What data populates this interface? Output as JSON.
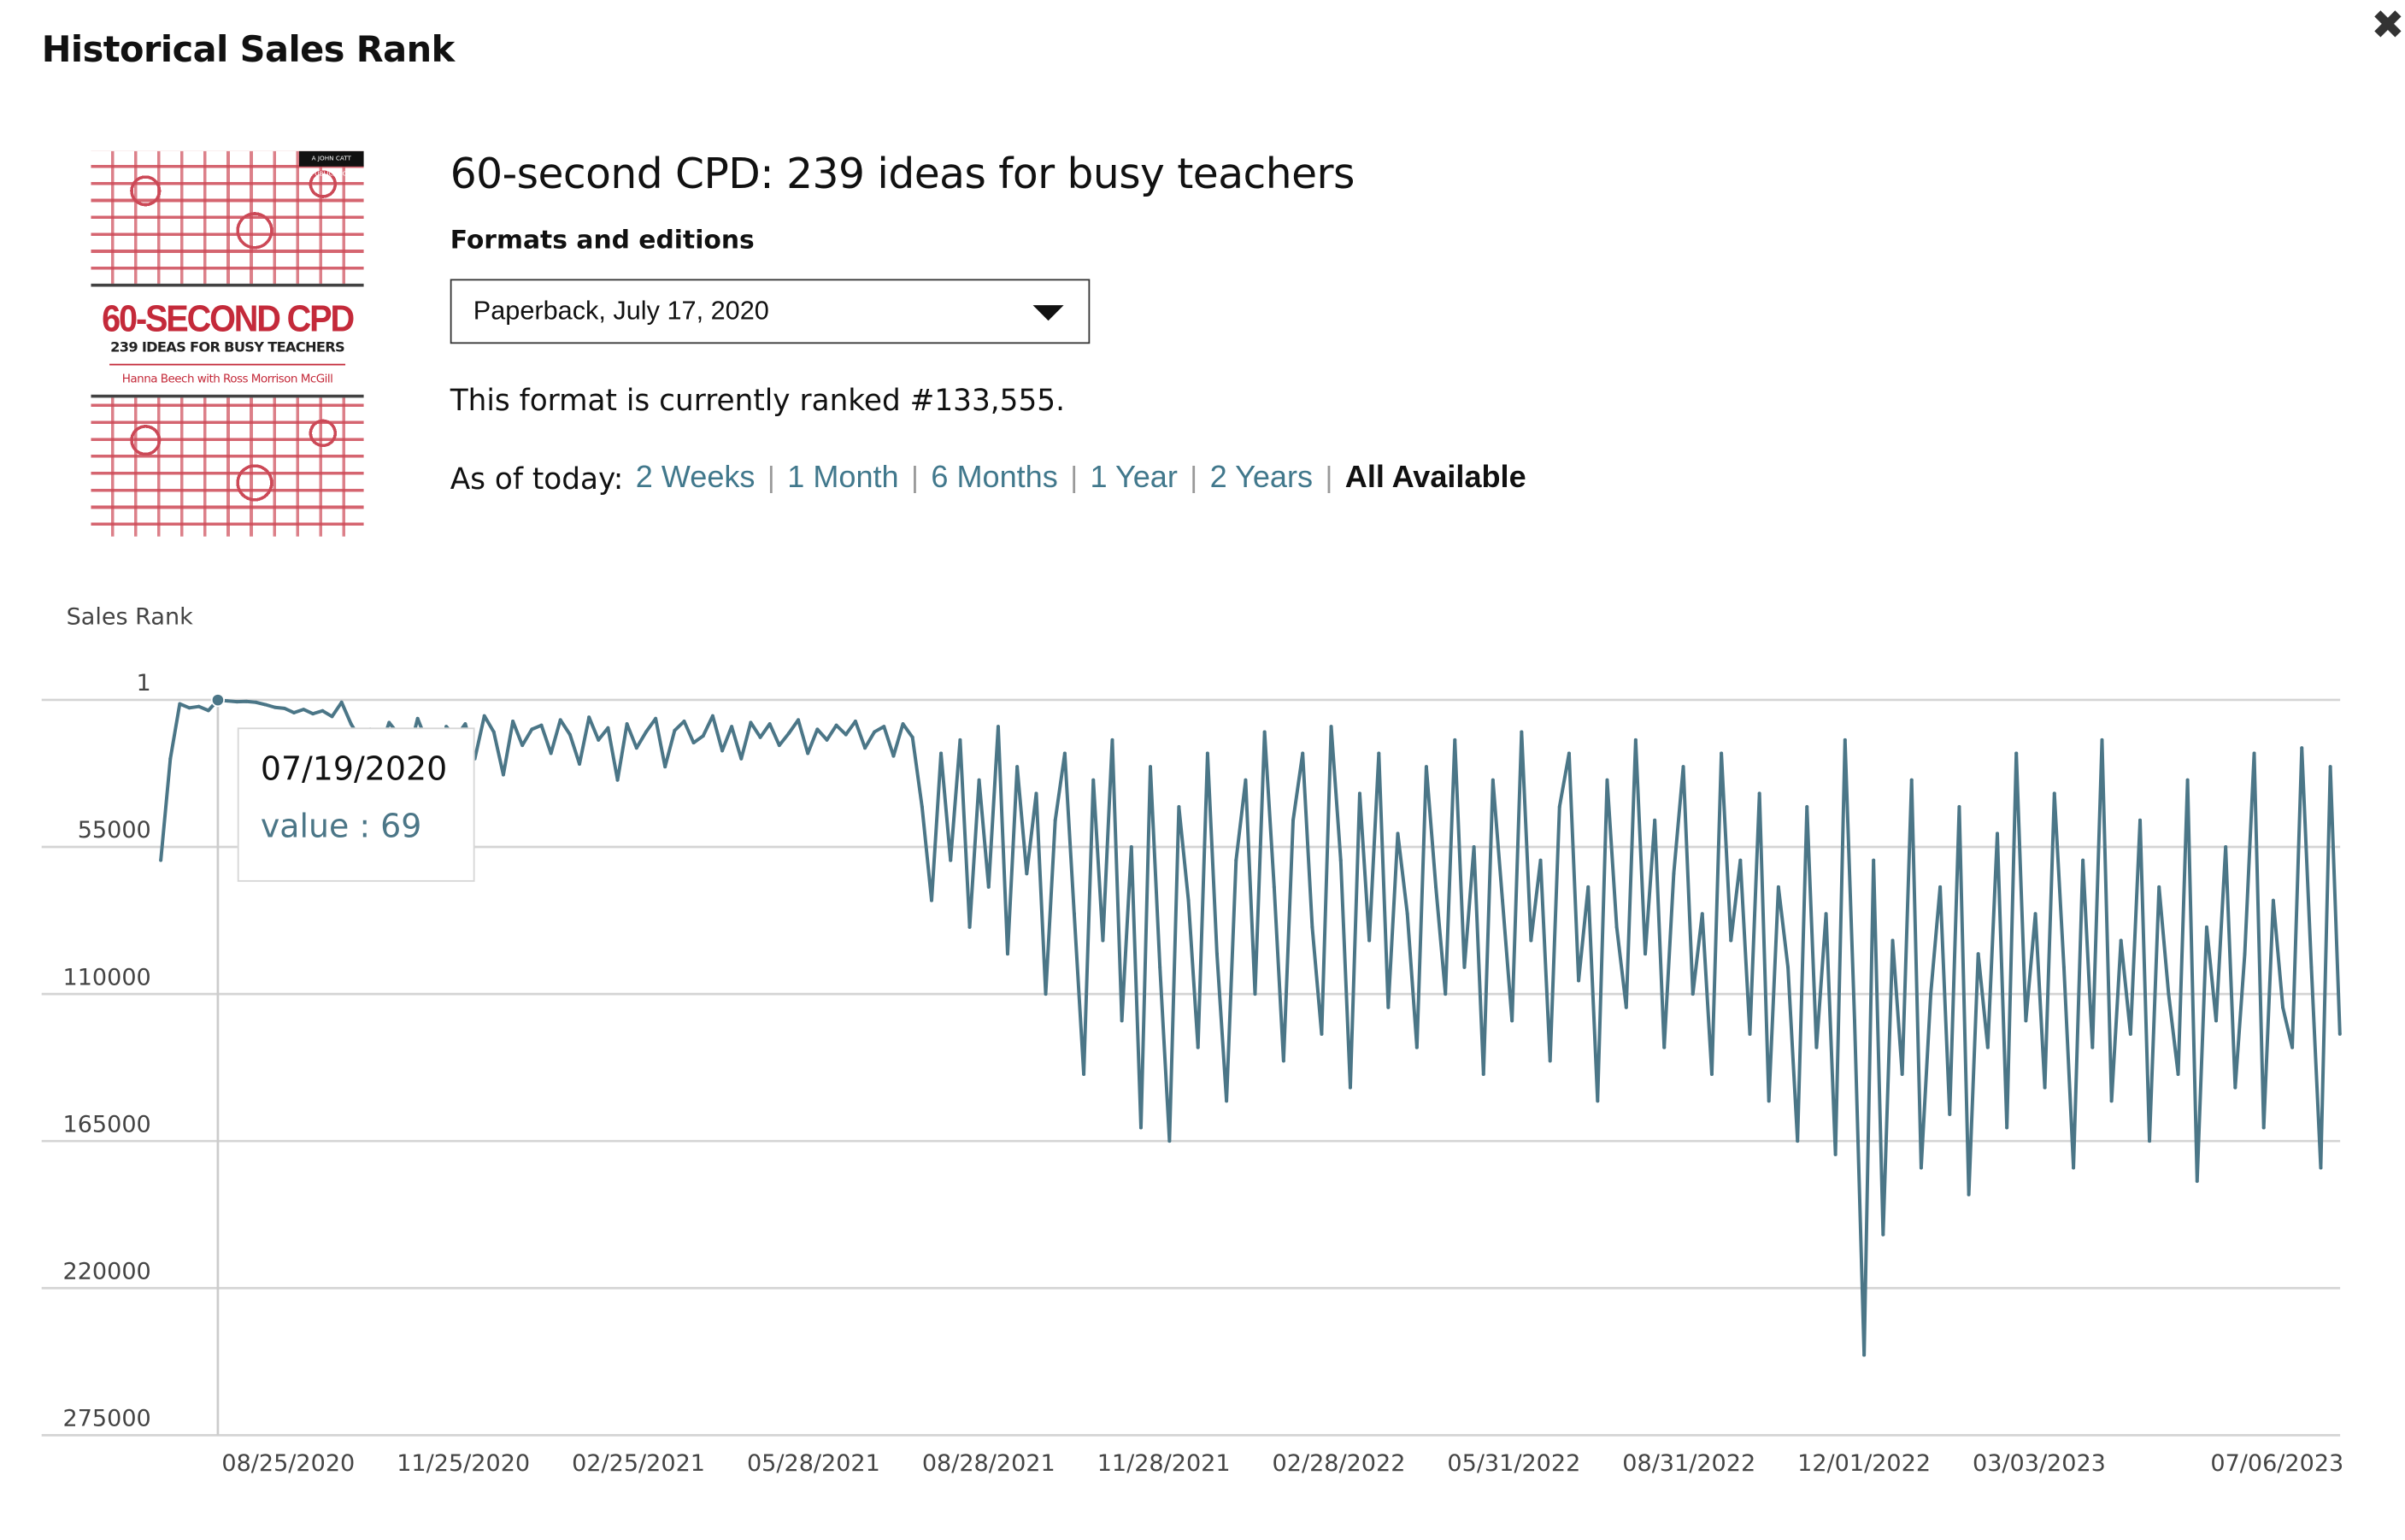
{
  "header": {
    "title": "Historical Sales Rank",
    "close_icon": "close-icon"
  },
  "product": {
    "title": "60-second CPD: 239 ideas for busy teachers",
    "cover": {
      "title": "60-SECOND CPD",
      "subtitle": "239 IDEAS FOR BUSY TEACHERS",
      "authors": "Hanna Beech with Ross Morrison McGill",
      "badge": "A JOHN CATT PUBLICATION"
    },
    "formats_label": "Formats and editions",
    "format_selected": "Paperback, July 17, 2020",
    "rank_text": "This format is currently ranked #133,555."
  },
  "range": {
    "prefix": "As of today:",
    "options": [
      "2 Weeks",
      "1 Month",
      "6 Months",
      "1 Year",
      "2 Years"
    ],
    "active": "All Available"
  },
  "colors": {
    "line": "#4b7687",
    "link": "#41788c",
    "grid": "#d4d4d4"
  },
  "tooltip": {
    "date": "07/19/2020",
    "value_text": "value : 69"
  },
  "chart_data": {
    "type": "line",
    "title": "",
    "ylabel": "Sales Rank",
    "xlabel": "",
    "y_inverted": true,
    "ylim": [
      1,
      275000
    ],
    "y_ticks": [
      "1",
      "55000",
      "110000",
      "165000",
      "220000",
      "275000"
    ],
    "y_tick_values": [
      1,
      55000,
      110000,
      165000,
      220000,
      275000
    ],
    "x_ticks": [
      "08/25/2020",
      "11/25/2020",
      "02/25/2021",
      "05/28/2021",
      "08/28/2021",
      "11/28/2021",
      "02/28/2022",
      "05/31/2022",
      "08/31/2022",
      "12/01/2022",
      "03/03/2023",
      "07/06/2023"
    ],
    "grid": true,
    "series": [
      {
        "name": "value",
        "start_date": "06/19/2020",
        "interval_days": 5,
        "values": [
          60000,
          22000,
          1500,
          3000,
          2500,
          4000,
          69,
          400,
          700,
          600,
          900,
          1800,
          2800,
          3200,
          4800,
          3600,
          5200,
          4100,
          6200,
          900,
          9000,
          15000,
          11000,
          19000,
          8500,
          13000,
          21000,
          7000,
          16000,
          52000,
          10000,
          14000,
          9000,
          22000,
          6000,
          12000,
          28000,
          8000,
          17000,
          11000,
          9500,
          20000,
          7500,
          13000,
          24000,
          6500,
          15000,
          10500,
          30000,
          9000,
          18000,
          12000,
          7000,
          25000,
          11500,
          8000,
          16000,
          13500,
          6000,
          19000,
          10000,
          22000,
          8500,
          14000,
          9000,
          17000,
          12500,
          7500,
          20000,
          11000,
          15000,
          9500,
          13000,
          8000,
          18000,
          12000,
          10000,
          21000,
          9000,
          14000,
          40000,
          75000,
          20000,
          60000,
          15000,
          85000,
          30000,
          70000,
          10000,
          95000,
          25000,
          65000,
          35000,
          110000,
          45000,
          20000,
          80000,
          140000,
          30000,
          90000,
          15000,
          120000,
          55000,
          160000,
          25000,
          100000,
          165000,
          40000,
          75000,
          130000,
          20000,
          95000,
          150000,
          60000,
          30000,
          110000,
          12000,
          70000,
          135000,
          45000,
          20000,
          85000,
          125000,
          10000,
          60000,
          145000,
          35000,
          90000,
          20000,
          115000,
          50000,
          80000,
          130000,
          25000,
          70000,
          110000,
          15000,
          100000,
          55000,
          140000,
          30000,
          75000,
          120000,
          12000,
          90000,
          60000,
          135000,
          40000,
          20000,
          105000,
          70000,
          150000,
          30000,
          85000,
          115000,
          15000,
          95000,
          45000,
          130000,
          65000,
          25000,
          110000,
          80000,
          140000,
          20000,
          90000,
          60000,
          125000,
          35000,
          150000,
          70000,
          100000,
          165000,
          40000,
          130000,
          80000,
          170000,
          15000,
          120000,
          245000,
          60000,
          200000,
          90000,
          140000,
          30000,
          175000,
          110000,
          70000,
          155000,
          40000,
          185000,
          95000,
          130000,
          50000,
          160000,
          20000,
          120000,
          80000,
          145000,
          35000,
          100000,
          175000,
          60000,
          130000,
          15000,
          150000,
          90000,
          125000,
          45000,
          165000,
          70000,
          110000,
          140000,
          30000,
          180000,
          85000,
          120000,
          55000,
          145000,
          95000,
          20000,
          160000,
          75000,
          115000,
          130000,
          18000,
          100000,
          175000,
          25000,
          125000
        ]
      }
    ],
    "highlight": {
      "date": "07/19/2020",
      "value": 69
    }
  }
}
